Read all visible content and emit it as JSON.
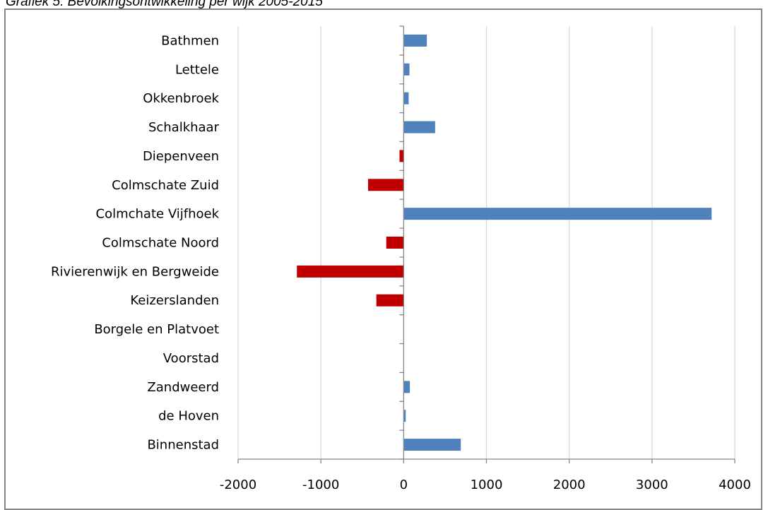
{
  "title": "Grafiek 5: Bevolkingsontwikkeling per wijk 2005-2015",
  "colors": {
    "positive": "#4F81BD",
    "negative": "#C00000",
    "grid": "#D9D9D9",
    "axis": "#868686"
  },
  "chart_data": {
    "type": "bar",
    "orientation": "horizontal",
    "title": "Grafiek 5: Bevolkingsontwikkeling per wijk 2005-2015",
    "categories": [
      "Bathmen",
      "Lettele",
      "Okkenbroek",
      "Schalkhaar",
      "Diepenveen",
      "Colmschate Zuid",
      "Colmchate Vijfhoek",
      "Colmschate Noord",
      "Rivierenwijk en Bergweide",
      "Keizerslanden",
      "Borgele en Platvoet",
      "Voorstad",
      "Zandweerd",
      "de Hoven",
      "Binnenstad"
    ],
    "values": [
      280,
      70,
      60,
      380,
      -50,
      -430,
      3720,
      -210,
      -1290,
      -330,
      0,
      0,
      75,
      25,
      690
    ],
    "xlim": [
      -2000,
      4000
    ],
    "xticks": [
      "-2000",
      "-1000",
      "0",
      "1000",
      "2000",
      "3000",
      "4000"
    ],
    "grid": true,
    "legend": "none"
  }
}
